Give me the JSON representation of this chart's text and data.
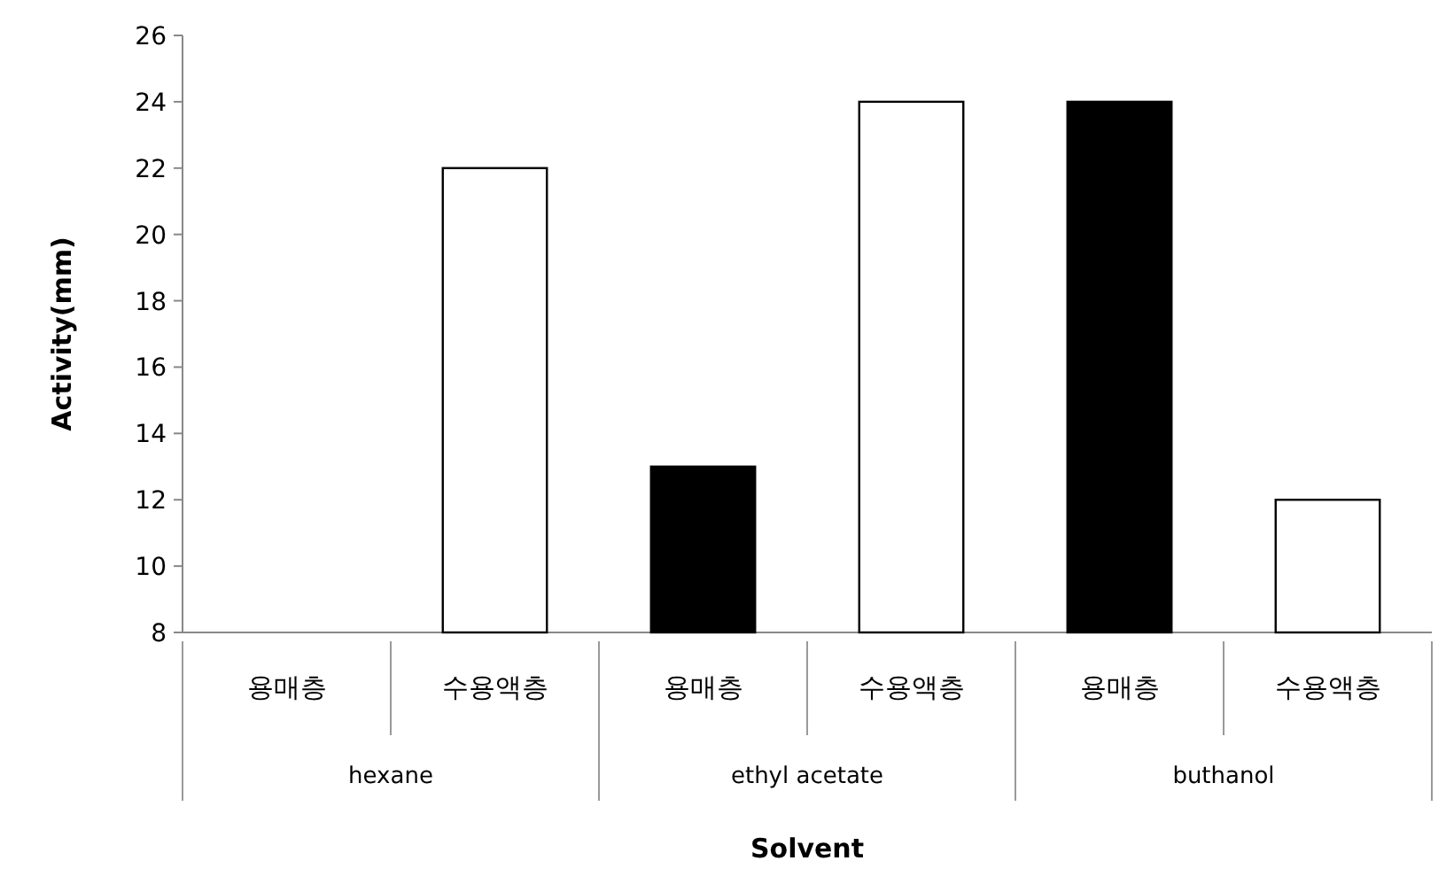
{
  "chart_data": {
    "type": "bar",
    "xlabel": "Solvent",
    "ylabel": "Activity(mm)",
    "categories": [
      "용매층",
      "수용액층",
      "용매층",
      "수용액층",
      "용매층",
      "수용액층"
    ],
    "values": [
      null,
      22,
      13,
      24,
      24,
      12
    ],
    "colors": [
      null,
      "#ffffff",
      "#000000",
      "#ffffff",
      "#000000",
      "#ffffff"
    ],
    "ylim": [
      8,
      26
    ],
    "yticks": [
      8,
      10,
      12,
      14,
      16,
      18,
      20,
      22,
      24,
      26
    ],
    "annotations": [
      "hexane",
      "ethyl acetate",
      "buthanol"
    ],
    "grid": false
  }
}
